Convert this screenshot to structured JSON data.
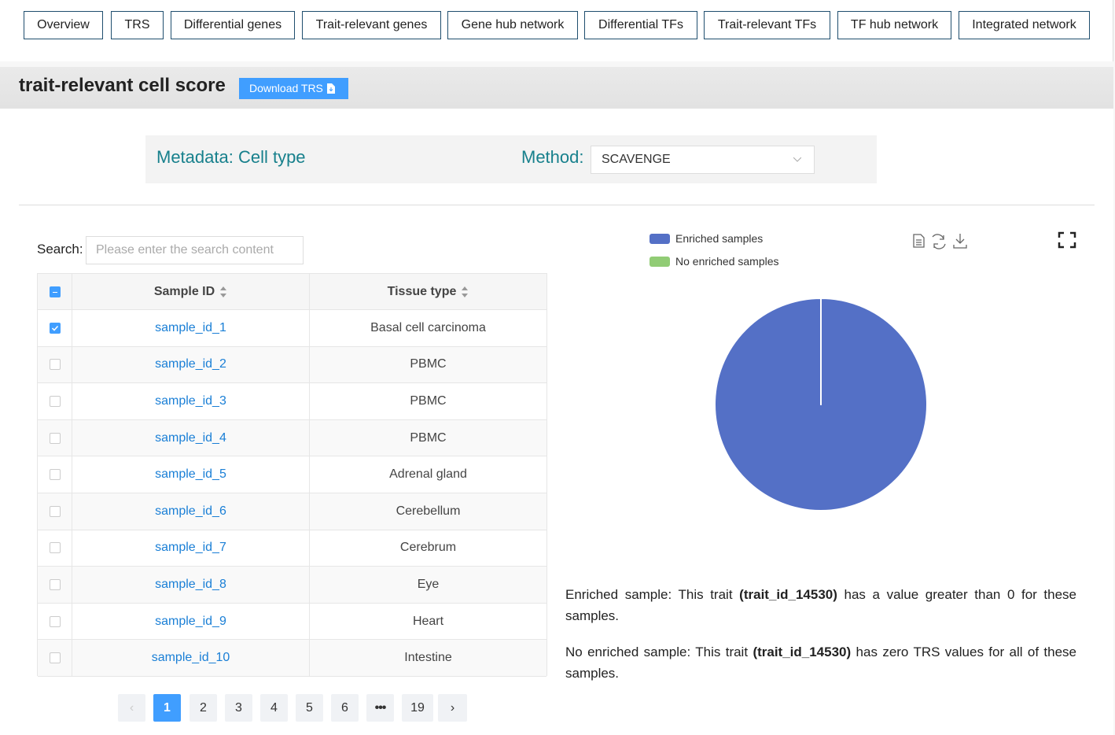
{
  "nav": [
    "Overview",
    "TRS",
    "Differential genes",
    "Trait-relevant genes",
    "Gene hub network",
    "Differential TFs",
    "Trait-relevant TFs",
    "TF hub network",
    "Integrated network"
  ],
  "header": {
    "title": "trait-relevant cell score",
    "button": "Download TRS"
  },
  "filters": {
    "metadata_label": "Metadata: Cell type",
    "method_label": "Method:",
    "method_value": "SCAVENGE"
  },
  "table": {
    "search_label": "Search:",
    "search_placeholder": "Please enter the search content",
    "columns": [
      "Sample ID",
      "Tissue type"
    ],
    "rows": [
      [
        "sample_id_1",
        "Basal cell carcinoma"
      ],
      [
        "sample_id_2",
        "PBMC"
      ],
      [
        "sample_id_3",
        "PBMC"
      ],
      [
        "sample_id_4",
        "PBMC"
      ],
      [
        "sample_id_5",
        "Adrenal gland"
      ],
      [
        "sample_id_6",
        "Cerebellum"
      ],
      [
        "sample_id_7",
        "Cerebrum"
      ],
      [
        "sample_id_8",
        "Eye"
      ],
      [
        "sample_id_9",
        "Heart"
      ],
      [
        "sample_id_10",
        "Intestine"
      ]
    ]
  },
  "pagination": {
    "pages": [
      1,
      2,
      3,
      4,
      5,
      6
    ],
    "last_page": 19,
    "current": 1
  },
  "chart_data": {
    "type": "pie",
    "categories": [
      "Enriched samples",
      "No enriched samples"
    ],
    "values": [
      100,
      0
    ],
    "colors": [
      "#5470c6",
      "#91cc75"
    ]
  },
  "notes": [
    [
      "Enriched sample: This trait",
      "(trait_id_14530)",
      "has a value greater than 0 for these samples."
    ],
    [
      "No enriched sample: This trait",
      "(trait_id_14530)",
      "has zero TRS values for all of these samples."
    ]
  ]
}
